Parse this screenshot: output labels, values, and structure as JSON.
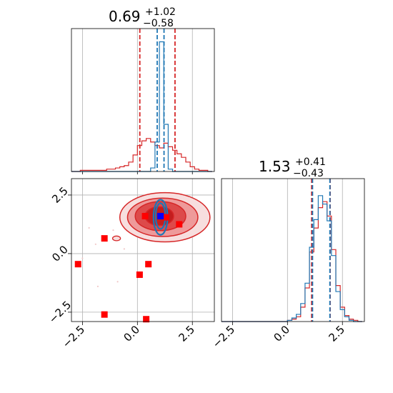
{
  "chart_data": [
    {
      "type": "histogram",
      "panel": "top-left",
      "title": {
        "value": "0.69",
        "plus": "+1.02",
        "minus": "−0.58"
      },
      "xlim": [
        -3.0,
        3.5
      ],
      "bins": [
        -3.0,
        -2.8,
        -2.6,
        -2.4,
        -2.2,
        -2.0,
        -1.8,
        -1.6,
        -1.4,
        -1.2,
        -1.0,
        -0.8,
        -0.6,
        -0.4,
        -0.2,
        0.0,
        0.2,
        0.4,
        0.6,
        0.8,
        1.0,
        1.2,
        1.4,
        1.6,
        1.8,
        2.0,
        2.2,
        2.4,
        2.6,
        2.8,
        3.0,
        3.2,
        3.4
      ],
      "series": [
        {
          "color": "#d62728",
          "counts": [
            0,
            0,
            1,
            1,
            1,
            1,
            1,
            1,
            2,
            2,
            3,
            4,
            5,
            8,
            14,
            22,
            26,
            28,
            25,
            22,
            20,
            24,
            21,
            18,
            15,
            12,
            8,
            4,
            2,
            1,
            1,
            0
          ],
          "quantiles": [
            0.11,
            1.71
          ]
        },
        {
          "color": "#1f77b4",
          "counts": [
            0,
            0,
            0,
            0,
            0,
            0,
            0,
            0,
            0,
            0,
            0,
            0,
            0,
            0,
            0,
            0,
            0,
            0,
            3,
            25,
            110,
            40,
            2,
            0,
            0,
            0,
            0,
            0,
            0,
            0,
            0,
            0
          ],
          "quantiles": [
            0.9,
            1.21
          ]
        }
      ],
      "ymax": 120
    },
    {
      "type": "scatter",
      "panel": "bottom-left",
      "xlim": [
        -3.0,
        3.5
      ],
      "ylim": [
        -2.9,
        3.2
      ],
      "x_ticks": [
        "−2.5",
        "0.0",
        "2.5"
      ],
      "y_ticks": [
        "−2.5",
        "0.0",
        "2.5"
      ],
      "grid": true,
      "red_markers": [
        [
          -1.5,
          0.65
        ],
        [
          -2.7,
          -0.45
        ],
        [
          0.5,
          -0.45
        ],
        [
          0.1,
          -0.9
        ],
        [
          -1.5,
          -2.6
        ],
        [
          0.4,
          -2.8
        ],
        [
          0.35,
          1.6
        ],
        [
          1.3,
          1.55
        ],
        [
          1.9,
          1.25
        ]
      ],
      "blue_marker": [
        1.05,
        1.6
      ],
      "red_contours": [
        {
          "cx": 1.25,
          "cy": 1.55,
          "rx": 2.05,
          "ry": 1.05,
          "fill": "#f7dede"
        },
        {
          "cx": 1.15,
          "cy": 1.55,
          "rx": 1.6,
          "ry": 0.82,
          "fill": "#ee9a9a"
        },
        {
          "cx": 1.05,
          "cy": 1.6,
          "rx": 1.15,
          "ry": 0.62,
          "fill": "#dd4a4a"
        },
        {
          "cx": 1.0,
          "cy": 1.6,
          "rx": 0.65,
          "ry": 0.4,
          "fill": "#c41d1d"
        }
      ],
      "blue_contours": [
        {
          "cx": 1.05,
          "cy": 1.55,
          "rx": 0.32,
          "ry": 0.75
        },
        {
          "cx": 1.05,
          "cy": 1.6,
          "rx": 0.22,
          "ry": 0.55
        }
      ]
    },
    {
      "type": "histogram",
      "panel": "bottom-right",
      "title": {
        "value": "1.53",
        "plus": "+0.41",
        "minus": "−0.43"
      },
      "xlim": [
        -3.0,
        3.5
      ],
      "x_ticks": [
        "−2.5",
        "0.0",
        "2.5"
      ],
      "bins": [
        -3.0,
        -2.8,
        -2.6,
        -2.4,
        -2.2,
        -2.0,
        -1.8,
        -1.6,
        -1.4,
        -1.2,
        -1.0,
        -0.8,
        -0.6,
        -0.4,
        -0.2,
        0.0,
        0.2,
        0.4,
        0.6,
        0.8,
        1.0,
        1.2,
        1.4,
        1.6,
        1.8,
        2.0,
        2.2,
        2.4,
        2.6,
        2.8,
        3.0,
        3.2,
        3.4
      ],
      "series": [
        {
          "color": "#d62728",
          "counts": [
            0,
            0,
            0,
            0,
            0,
            0,
            0,
            0,
            0,
            0,
            0,
            0,
            0,
            0,
            0,
            1,
            2,
            4,
            12,
            28,
            58,
            78,
            95,
            100,
            88,
            60,
            30,
            12,
            5,
            2,
            1,
            0
          ],
          "quantiles": [
            1.1,
            1.94
          ]
        },
        {
          "color": "#1f77b4",
          "counts": [
            0,
            0,
            0,
            0,
            0,
            0,
            0,
            0,
            0,
            0,
            0,
            0,
            0,
            0,
            0,
            1,
            3,
            6,
            15,
            32,
            62,
            85,
            105,
            98,
            84,
            55,
            25,
            10,
            4,
            1,
            0,
            0
          ],
          "quantiles": [
            1.14,
            1.93
          ]
        }
      ],
      "ymax": 118
    }
  ]
}
